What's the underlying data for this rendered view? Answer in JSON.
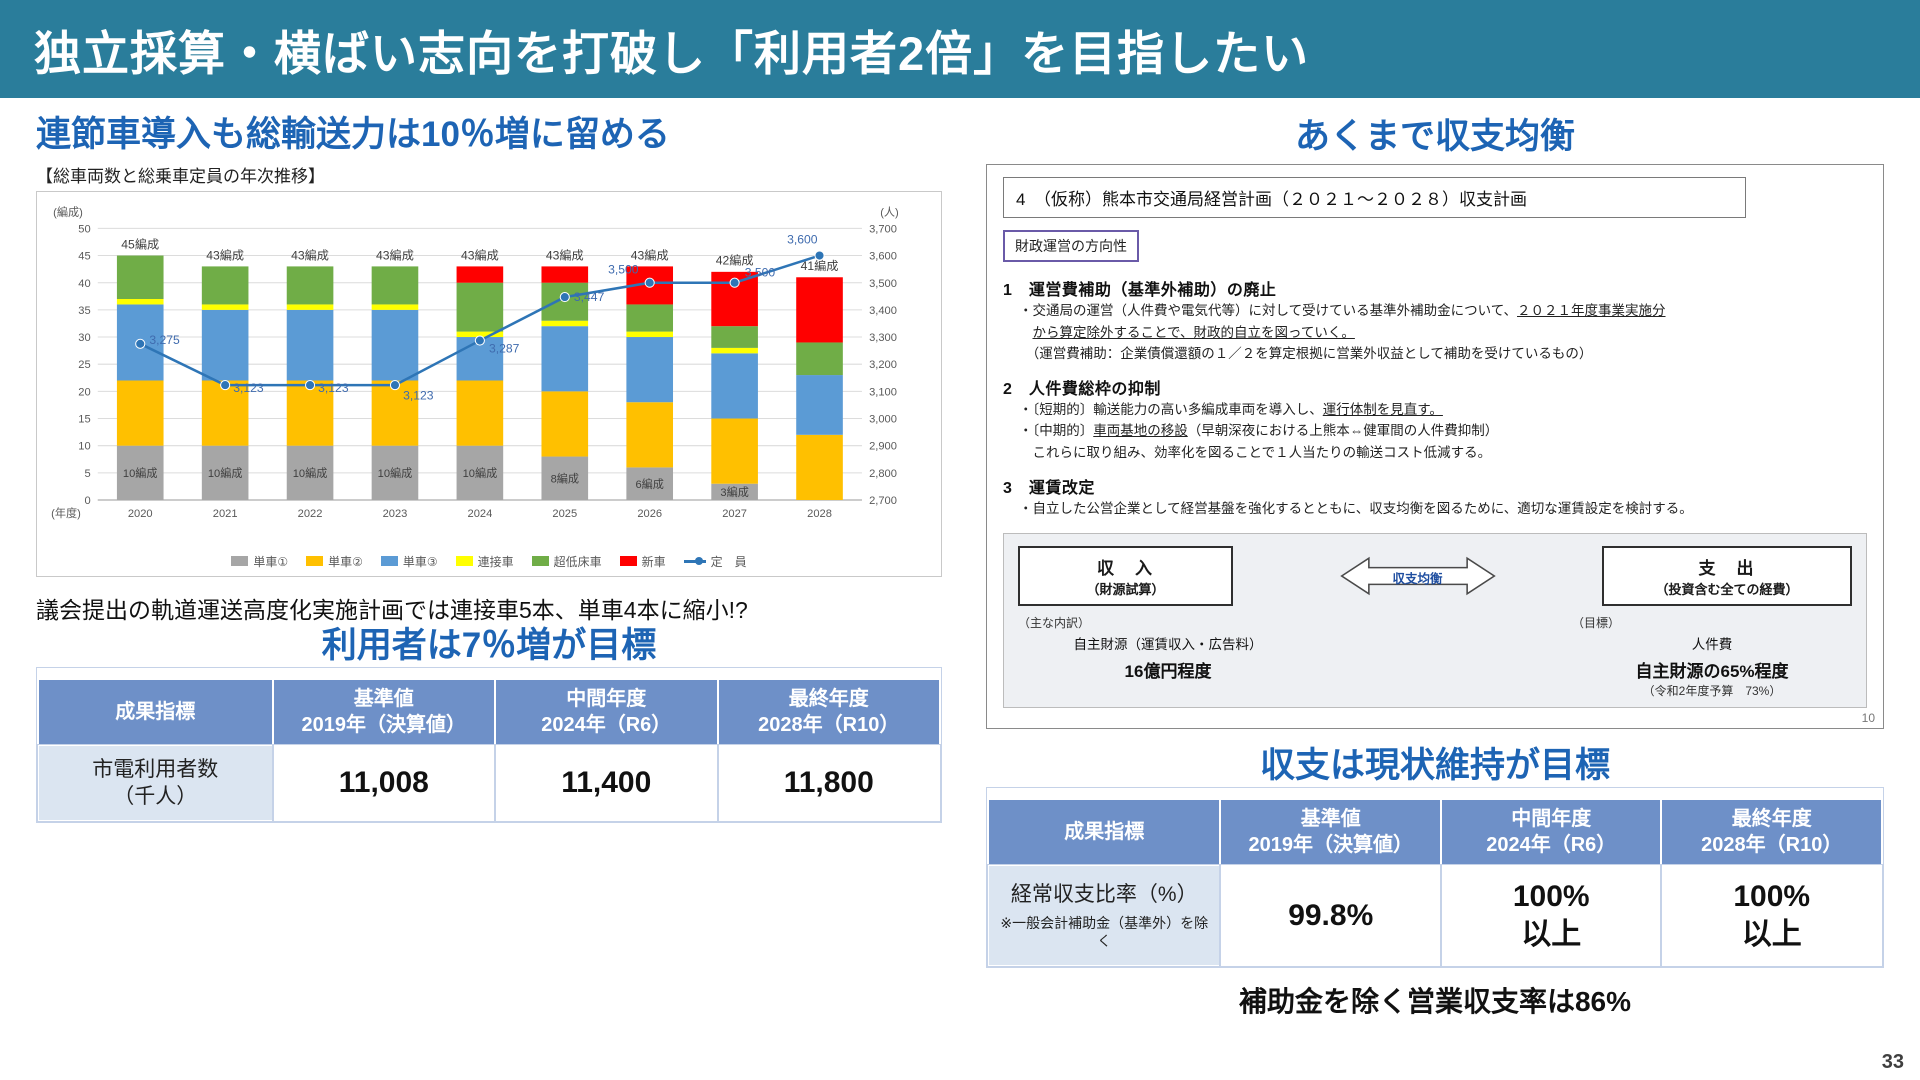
{
  "header": {
    "title": "独立採算・横ばい志向を打破し「利用者2倍」を目指したい"
  },
  "page_number": "33",
  "left": {
    "heading": "連節車導入も総輸送力は10％増に留める",
    "note": "議会提出の軌道運送高度化実施計画では連接車5本、単車4本に縮小!?",
    "table_heading": "利用者は7％増が目標",
    "table": {
      "headers": [
        {
          "line1": "成果指標",
          "line2": ""
        },
        {
          "line1": "基準値",
          "line2": "2019年（決算値）"
        },
        {
          "line1": "中間年度",
          "line2": "2024年（R6）"
        },
        {
          "line1": "最終年度",
          "line2": "2028年（R10）"
        }
      ],
      "row_label1": "市電利用者数",
      "row_label2": "（千人）",
      "values": [
        "11,008",
        "11,400",
        "11,800"
      ]
    }
  },
  "right": {
    "heading": "あくまで収支均衡",
    "table_heading": "収支は現状維持が目標",
    "bottom_note": "補助金を除く営業収支率は86%",
    "table": {
      "headers": [
        {
          "line1": "成果指標",
          "line2": ""
        },
        {
          "line1": "基準値",
          "line2": "2019年（決算値）"
        },
        {
          "line1": "中間年度",
          "line2": "2024年（R6）"
        },
        {
          "line1": "最終年度",
          "line2": "2028年（R10）"
        }
      ],
      "row_label1": "経常収支比率（%）",
      "row_label2": "※一般会計補助金（基準外）を除く",
      "values": [
        {
          "main": "99.8%",
          "sub": ""
        },
        {
          "main": "100%",
          "sub": "以上"
        },
        {
          "main": "100%",
          "sub": "以上"
        }
      ]
    },
    "doc": {
      "title": "4　（仮称）熊本市交通局経営計画（２０２１～２０２８）収支計画",
      "direction_label": "財政運営の方向性",
      "sections": [
        {
          "heading": "1　運営費補助（基準外補助）の廃止",
          "lines": [
            {
              "pre": "・交通局の運営（人件費や電気代等）に対して受けている基準外補助金について、",
              "u": "２０２１年度事業実施分",
              "post": ""
            },
            {
              "pre": "　",
              "u": "から算定除外することで、財政的自立を図っていく。",
              "post": ""
            },
            {
              "pre": "　（運営費補助：企業債償還額の１／２を算定根拠に営業外収益として補助を受けているもの）",
              "u": "",
              "post": ""
            }
          ]
        },
        {
          "heading": "2　人件費総枠の抑制",
          "lines": [
            {
              "pre": "・〔短期的〕輸送能力の高い多編成車両を導入し、",
              "u": "運行体制を見直す。",
              "post": ""
            },
            {
              "pre": "・〔中期的〕",
              "u": "車両基地の移設",
              "post": "（早朝深夜における上熊本⇔健軍間の人件費抑制）"
            },
            {
              "pre": "　これらに取り組み、効率化を図ることで１人当たりの輸送コスト低減する。",
              "u": "",
              "post": ""
            }
          ]
        },
        {
          "heading": "3　運賃改定",
          "lines": [
            {
              "pre": "・自立した公営企業として経営基盤を強化するとともに、収支均衡を図るために、適切な運賃設定を検討する。",
              "u": "",
              "post": ""
            }
          ]
        }
      ],
      "balance": {
        "income_title": "収　入",
        "income_sub": "（財源試算）",
        "arrow_label": "収支均衡",
        "expense_title": "支　出",
        "expense_sub": "（投資含む全ての経費）",
        "income_note1": "（主な内訳）",
        "income_note2": "自主財源（運賃収入・広告料）",
        "income_note3": "16億円程度",
        "expense_note1": "（目標）",
        "expense_note2": "人件費",
        "expense_note3": "自主財源の65%程度",
        "expense_note4": "（令和2年度予算　73%）"
      },
      "page_num": "10"
    }
  },
  "chart_data": {
    "type": "bar",
    "title": "【総車両数と総乗車定員の年次推移】",
    "categories": [
      "2020",
      "2021",
      "2022",
      "2023",
      "2024",
      "2025",
      "2026",
      "2027",
      "2028"
    ],
    "series": [
      {
        "name": "単車①",
        "color": "#a6a6a6",
        "values": [
          10,
          10,
          10,
          10,
          10,
          8,
          6,
          3,
          0
        ]
      },
      {
        "name": "単車②",
        "color": "#ffc000",
        "values": [
          12,
          12,
          12,
          12,
          12,
          12,
          12,
          12,
          12
        ]
      },
      {
        "name": "単車③",
        "color": "#5b9bd5",
        "values": [
          14,
          13,
          13,
          13,
          8,
          12,
          12,
          12,
          11
        ]
      },
      {
        "name": "連接車",
        "color": "#ffff00",
        "values": [
          1,
          1,
          1,
          1,
          1,
          1,
          1,
          1,
          0
        ]
      },
      {
        "name": "超低床車",
        "color": "#70ad47",
        "values": [
          8,
          7,
          7,
          7,
          9,
          7,
          5,
          4,
          6
        ]
      },
      {
        "name": "新車",
        "color": "#ff0000",
        "values": [
          0,
          0,
          0,
          0,
          3,
          3,
          7,
          10,
          12
        ]
      }
    ],
    "line": {
      "name": "定　員",
      "color": "#2e75b6",
      "values": [
        3275,
        3123,
        3123,
        3123,
        3287,
        3447,
        3500,
        3500,
        3600
      ]
    },
    "bar_labels": [
      "45編成",
      "43編成",
      "43編成",
      "43編成",
      "43編成",
      "43編成",
      "43編成",
      "42編成",
      "41編成"
    ],
    "gray_labels": [
      "10編成",
      "10編成",
      "10編成",
      "10編成",
      "10編成",
      "8編成",
      "6編成",
      "3編成",
      ""
    ],
    "left_axis": {
      "unit": "(編成)",
      "min": 0,
      "max": 50,
      "step": 5
    },
    "right_axis": {
      "unit": "(人)",
      "min": 2700,
      "max": 3700,
      "step": 100
    },
    "x_unit": "(年度)",
    "grid": true,
    "legend_position": "bottom"
  }
}
